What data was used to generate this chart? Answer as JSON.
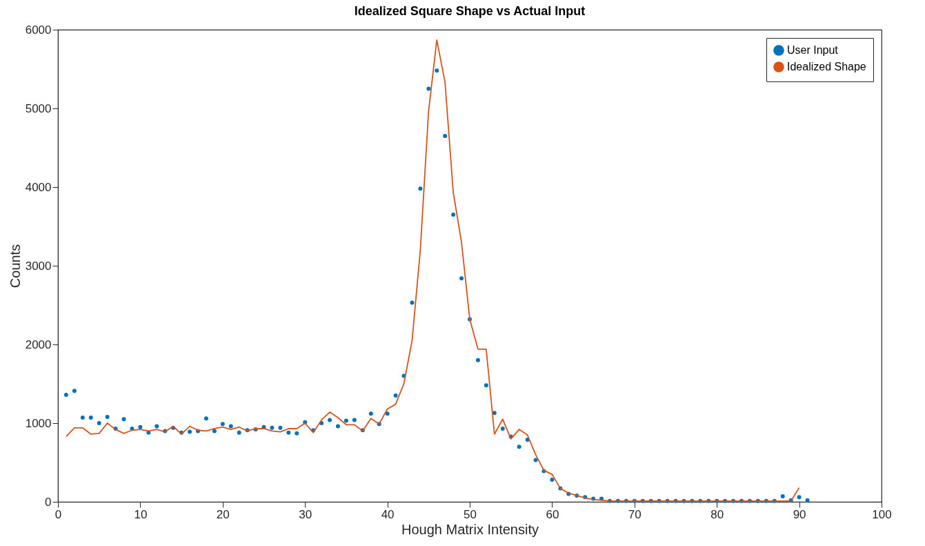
{
  "chart_data": {
    "type": "line",
    "title": "Idealized Square Shape vs Actual Input",
    "xlabel": "Hough Matrix Intensity",
    "ylabel": "Counts",
    "xlim": [
      0,
      100
    ],
    "xticks": [
      0,
      10,
      20,
      30,
      40,
      50,
      60,
      70,
      80,
      90,
      100
    ],
    "ylim": [
      0,
      6000
    ],
    "yticks": [
      0,
      1000,
      2000,
      3000,
      4000,
      5000,
      6000
    ],
    "legend": "top right",
    "series": [
      {
        "name": "User Input",
        "type": "scatter",
        "color": "#0072bd",
        "x": [
          1,
          2,
          3,
          4,
          5,
          6,
          7,
          8,
          9,
          10,
          11,
          12,
          13,
          14,
          15,
          16,
          17,
          18,
          19,
          20,
          21,
          22,
          23,
          24,
          25,
          26,
          27,
          28,
          29,
          30,
          31,
          32,
          33,
          34,
          35,
          36,
          37,
          38,
          39,
          40,
          41,
          42,
          43,
          44,
          45,
          46,
          47,
          48,
          49,
          50,
          51,
          52,
          53,
          54,
          55,
          56,
          57,
          58,
          59,
          60,
          61,
          62,
          63,
          64,
          65,
          66,
          67,
          68,
          69,
          70,
          71,
          72,
          73,
          74,
          75,
          76,
          77,
          78,
          79,
          80,
          81,
          82,
          83,
          84,
          85,
          86,
          87,
          88,
          89,
          90,
          91
        ],
        "values": [
          1360,
          1410,
          1070,
          1070,
          1000,
          1080,
          930,
          1050,
          930,
          950,
          880,
          960,
          900,
          940,
          880,
          890,
          900,
          1060,
          900,
          990,
          960,
          880,
          910,
          920,
          950,
          940,
          940,
          880,
          870,
          1010,
          910,
          1000,
          1040,
          960,
          1030,
          1040,
          910,
          1120,
          990,
          1120,
          1350,
          1600,
          2530,
          3980,
          5250,
          5480,
          4650,
          3650,
          2840,
          2320,
          1800,
          1480,
          1130,
          930,
          830,
          700,
          790,
          530,
          390,
          280,
          170,
          100,
          80,
          60,
          40,
          40,
          10,
          10,
          10,
          10,
          10,
          10,
          10,
          10,
          10,
          10,
          10,
          10,
          10,
          10,
          10,
          10,
          10,
          10,
          10,
          10,
          10,
          70,
          20,
          60,
          20
        ]
      },
      {
        "name": "Idealized Shape",
        "type": "line",
        "color": "#d95319",
        "x": [
          1,
          2,
          3,
          4,
          5,
          6,
          7,
          8,
          9,
          10,
          11,
          12,
          13,
          14,
          15,
          16,
          17,
          18,
          19,
          20,
          21,
          22,
          23,
          24,
          25,
          26,
          27,
          28,
          29,
          30,
          31,
          32,
          33,
          34,
          35,
          36,
          37,
          38,
          39,
          40,
          41,
          42,
          43,
          44,
          45,
          46,
          47,
          48,
          49,
          50,
          51,
          52,
          53,
          54,
          55,
          56,
          57,
          58,
          59,
          60,
          61,
          62,
          63,
          64,
          65,
          66,
          67,
          68,
          69,
          70,
          71,
          72,
          73,
          74,
          75,
          76,
          77,
          78,
          79,
          80,
          81,
          82,
          83,
          84,
          85,
          86,
          87,
          88,
          89,
          90
        ],
        "values": [
          830,
          940,
          940,
          860,
          870,
          1000,
          920,
          870,
          910,
          920,
          900,
          920,
          890,
          960,
          860,
          960,
          910,
          900,
          930,
          950,
          920,
          950,
          900,
          930,
          930,
          900,
          890,
          930,
          930,
          1000,
          880,
          1040,
          1140,
          1070,
          980,
          980,
          900,
          1060,
          990,
          1180,
          1240,
          1500,
          2050,
          3200,
          4960,
          5870,
          5330,
          3930,
          3300,
          2320,
          1940,
          1940,
          860,
          1050,
          800,
          920,
          850,
          600,
          400,
          350,
          170,
          110,
          80,
          50,
          30,
          20,
          10,
          10,
          10,
          10,
          10,
          10,
          10,
          10,
          10,
          10,
          10,
          10,
          10,
          10,
          10,
          10,
          10,
          10,
          10,
          10,
          10,
          10,
          10,
          180
        ]
      }
    ]
  }
}
